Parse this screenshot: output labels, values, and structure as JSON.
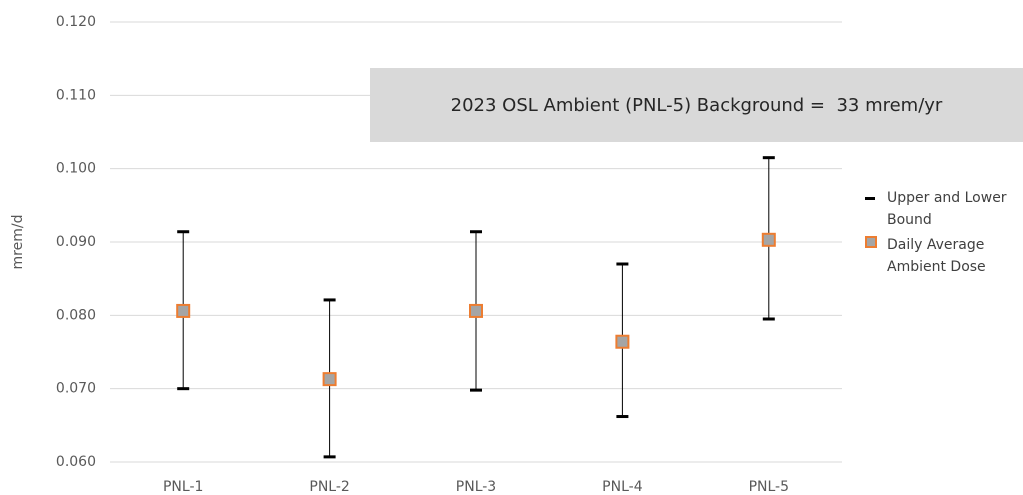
{
  "chart_data": {
    "type": "errorbar",
    "y_label": "mrem/d",
    "annotation": "2023 OSL Ambient (PNL-5) Background =  33 mrem/yr",
    "categories": [
      "PNL-1",
      "PNL-2",
      "PNL-3",
      "PNL-4",
      "PNL-5"
    ],
    "series": [
      {
        "name": "Upper and Lower Bound",
        "color": "#000000",
        "upper": [
          0.0914,
          0.0821,
          0.0914,
          0.087,
          0.1015
        ],
        "lower": [
          0.07,
          0.0607,
          0.0698,
          0.0662,
          0.0795
        ]
      },
      {
        "name": "Daily Average Ambient Dose",
        "color": "#a5a5a5",
        "edge_color": "#ed7d31",
        "values": [
          0.0806,
          0.0713,
          0.0806,
          0.0764,
          0.0903
        ]
      }
    ],
    "ylim": [
      0.06,
      0.12
    ],
    "yticks": [
      {
        "value": 0.06,
        "label": "0.060"
      },
      {
        "value": 0.07,
        "label": "0.070"
      },
      {
        "value": 0.08,
        "label": "0.080"
      },
      {
        "value": 0.09,
        "label": "0.090"
      },
      {
        "value": 0.1,
        "label": "0.100"
      },
      {
        "value": 0.11,
        "label": "0.110"
      },
      {
        "value": 0.12,
        "label": "0.120"
      }
    ],
    "grid": true,
    "legend": "right"
  }
}
